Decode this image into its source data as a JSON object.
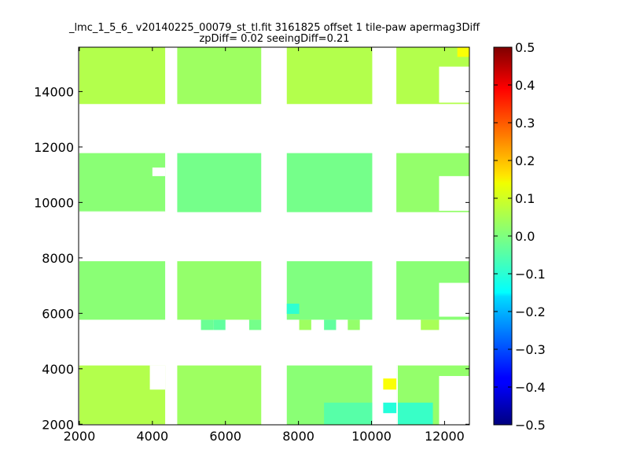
{
  "chart_data": {
    "type": "heatmap",
    "title_lines": [
      "_lmc_1_5_6_ v20140225_00079_st_tl.fit 3161825 offset 1 tile-paw apermag3Diff",
      "zpDiff= 0.02 seeingDiff=0.21"
    ],
    "xlabel": "",
    "ylabel": "",
    "xlim": [
      1980,
      12680
    ],
    "ylim": [
      1980,
      15600
    ],
    "xticks": [
      2000,
      4000,
      6000,
      8000,
      10000,
      12000
    ],
    "yticks": [
      2000,
      4000,
      6000,
      8000,
      10000,
      12000,
      14000
    ],
    "colorbar": {
      "colormap": "jet",
      "vmin": -0.5,
      "vmax": 0.5,
      "ticks": [
        0.5,
        0.4,
        0.3,
        0.2,
        0.1,
        0.0,
        -0.1,
        -0.2,
        -0.3,
        -0.4,
        -0.5
      ],
      "tick_labels": [
        "0.5",
        "0.4",
        "0.3",
        "0.2",
        "0.1",
        "0.0",
        "−0.1",
        "−0.2",
        "−0.3",
        "−0.4",
        "−0.5"
      ]
    },
    "detectors": [
      {
        "x": [
          2000,
          4350
        ],
        "y": [
          13550,
          15600
        ],
        "value": 0.05
      },
      {
        "x": [
          4680,
          6980
        ],
        "y": [
          13550,
          15600
        ],
        "value": 0.03
      },
      {
        "x": [
          7680,
          10020
        ],
        "y": [
          13550,
          15600
        ],
        "value": 0.05
      },
      {
        "x": [
          10680,
          12680
        ],
        "y": [
          13550,
          15600
        ],
        "value": 0.05
      },
      {
        "x": [
          2000,
          4350
        ],
        "y": [
          9650,
          11780
        ],
        "value": 0.01
      },
      {
        "x": [
          4680,
          6980
        ],
        "y": [
          9650,
          11780
        ],
        "value": -0.01
      },
      {
        "x": [
          7680,
          10020
        ],
        "y": [
          9650,
          11780
        ],
        "value": -0.01
      },
      {
        "x": [
          10680,
          12680
        ],
        "y": [
          9650,
          11780
        ],
        "value": 0.02
      },
      {
        "x": [
          2000,
          4350
        ],
        "y": [
          5770,
          7880
        ],
        "value": 0.01
      },
      {
        "x": [
          4680,
          6980
        ],
        "y": [
          5770,
          7880
        ],
        "value": 0.02
      },
      {
        "x": [
          7680,
          10020
        ],
        "y": [
          5770,
          7880
        ],
        "value": 0.0
      },
      {
        "x": [
          10680,
          12680
        ],
        "y": [
          5770,
          7880
        ],
        "value": 0.01
      },
      {
        "x": [
          2000,
          4350
        ],
        "y": [
          1980,
          4120
        ],
        "value": 0.05
      },
      {
        "x": [
          4680,
          6980
        ],
        "y": [
          1980,
          4120
        ],
        "value": 0.03
      },
      {
        "x": [
          7680,
          10020
        ],
        "y": [
          1980,
          4120
        ],
        "value": 0.01
      },
      {
        "x": [
          10680,
          12680
        ],
        "y": [
          1980,
          4120
        ],
        "value": 0.02
      }
    ],
    "holes": [
      {
        "x": [
          11850,
          12680
        ],
        "y": [
          13600,
          14900
        ]
      },
      {
        "x": [
          11850,
          12680
        ],
        "y": [
          9700,
          10950
        ]
      },
      {
        "x": [
          2000,
          4350
        ],
        "y": [
          9650,
          9680
        ]
      },
      {
        "x": [
          4000,
          4350
        ],
        "y": [
          10950,
          11260
        ]
      },
      {
        "x": [
          11850,
          12680
        ],
        "y": [
          5880,
          7100
        ]
      },
      {
        "x": [
          2000,
          4350
        ],
        "y": [
          1980,
          2000
        ]
      },
      {
        "x": [
          3930,
          4350
        ],
        "y": [
          3250,
          4120
        ]
      },
      {
        "x": [
          10680,
          10720
        ],
        "y": [
          1980,
          4120
        ]
      },
      {
        "x": [
          11850,
          12680
        ],
        "y": [
          1980,
          3740
        ]
      }
    ],
    "extra_cells": [
      {
        "x": [
          12350,
          12680
        ],
        "y": [
          15250,
          15600
        ],
        "value": 0.12
      },
      {
        "x": [
          5680,
          6000
        ],
        "y": [
          5400,
          5770
        ],
        "value": -0.03
      },
      {
        "x": [
          5330,
          5680
        ],
        "y": [
          5400,
          5770
        ],
        "value": -0.02
      },
      {
        "x": [
          6650,
          6980
        ],
        "y": [
          5400,
          5770
        ],
        "value": -0.01
      },
      {
        "x": [
          8020,
          8350
        ],
        "y": [
          5400,
          5770
        ],
        "value": 0.03
      },
      {
        "x": [
          8700,
          9030
        ],
        "y": [
          5400,
          5770
        ],
        "value": -0.03
      },
      {
        "x": [
          9350,
          9680
        ],
        "y": [
          5400,
          5770
        ],
        "value": 0.02
      },
      {
        "x": [
          11350,
          11850
        ],
        "y": [
          5400,
          5770
        ],
        "value": 0.04
      },
      {
        "x": [
          7680,
          8020
        ],
        "y": [
          5980,
          6350
        ],
        "value": -0.08
      },
      {
        "x": [
          10320,
          10680
        ],
        "y": [
          3250,
          3650
        ],
        "value": 0.12
      },
      {
        "x": [
          10320,
          10680
        ],
        "y": [
          2400,
          2780
        ],
        "value": -0.09
      },
      {
        "x": [
          10720,
          11680
        ],
        "y": [
          2000,
          2780
        ],
        "value": -0.07
      },
      {
        "x": [
          8700,
          10020
        ],
        "y": [
          2000,
          2780
        ],
        "value": -0.04
      }
    ]
  }
}
